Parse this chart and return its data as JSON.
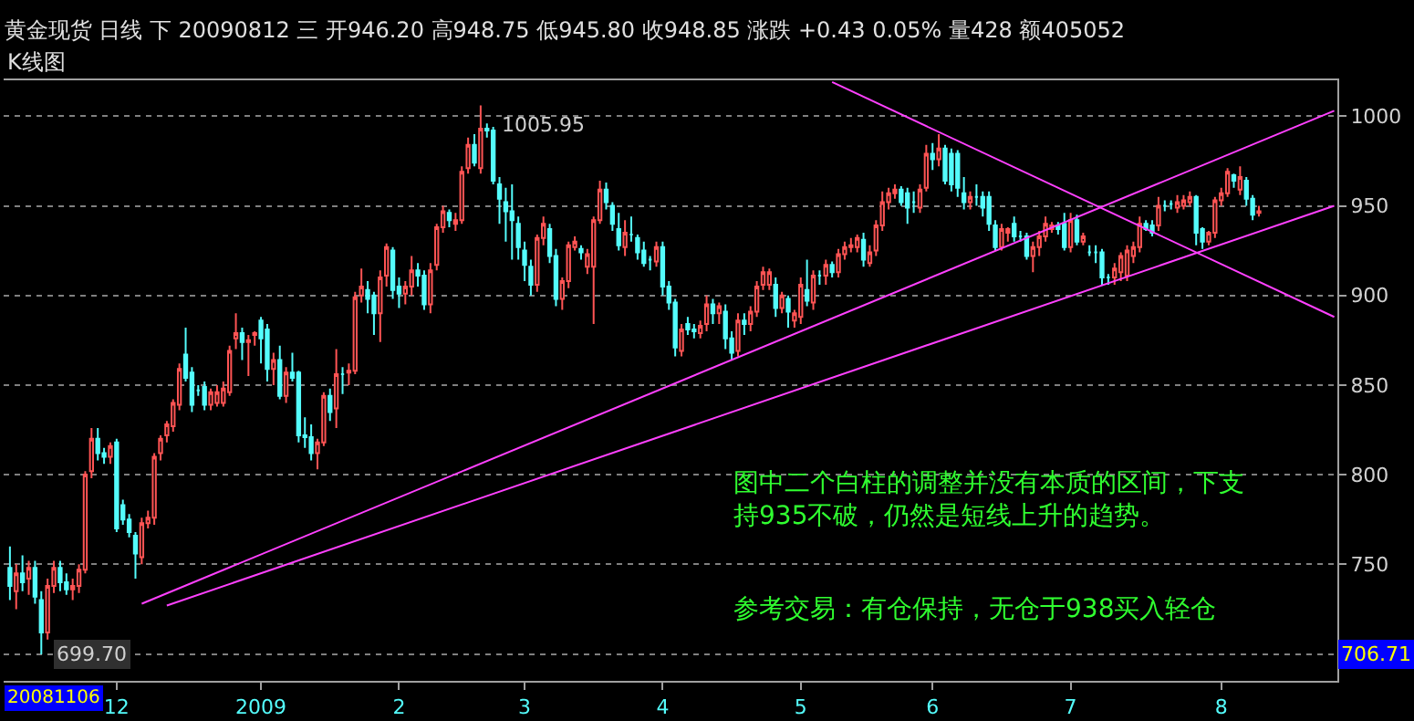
{
  "chart_data": {
    "type": "candlestick",
    "title": "黄金现货 日线 下 20090812 三 开946.20 高948.75 低945.80 收948.85 涨跌 +0.43 0.05% 量428 额405052",
    "subtitle": "K线图",
    "categories": [
      null,
      null,
      null,
      null,
      null,
      null,
      null,
      null,
      null,
      null,
      null,
      null,
      null,
      null,
      null,
      null,
      null,
      "12",
      null,
      null,
      null,
      null,
      null,
      null,
      null,
      null,
      null,
      null,
      null,
      null,
      null,
      null,
      null,
      null,
      null,
      null,
      null,
      null,
      null,
      null,
      "2009",
      null,
      null,
      null,
      null,
      null,
      null,
      null,
      null,
      null,
      null,
      null,
      null,
      null,
      null,
      null,
      null,
      null,
      null,
      null,
      null,
      null,
      "2",
      null,
      null,
      null,
      null,
      null,
      null,
      null,
      null,
      null,
      null,
      null,
      null,
      null,
      null,
      null,
      null,
      null,
      null,
      null,
      "3",
      null,
      null,
      null,
      null,
      null,
      null,
      null,
      null,
      null,
      null,
      null,
      null,
      null,
      null,
      null,
      null,
      null,
      null,
      null,
      null,
      null,
      "4",
      null,
      null,
      null,
      null,
      null,
      null,
      null,
      null,
      null,
      null,
      null,
      null,
      null,
      null,
      null,
      null,
      null,
      null,
      null,
      null,
      null,
      "5",
      null,
      null,
      null,
      null,
      null,
      null,
      null,
      null,
      null,
      null,
      null,
      null,
      null,
      null,
      null,
      null,
      null,
      null,
      null,
      null,
      "6",
      null,
      null,
      null,
      null,
      null,
      null,
      null,
      null,
      null,
      null,
      null,
      null,
      null,
      null,
      null,
      null,
      null,
      null,
      null,
      null,
      null,
      "7",
      null,
      null,
      null,
      null,
      null,
      null,
      null,
      null,
      null,
      null,
      null,
      null,
      null,
      null,
      null,
      null,
      null,
      null,
      null,
      null,
      null,
      null,
      null,
      "8",
      null,
      null,
      null,
      null,
      null,
      null,
      null,
      null,
      null,
      null,
      null,
      null,
      null,
      null,
      null,
      null,
      null,
      null
    ],
    "ohlc": [
      [
        748,
        760,
        730,
        738
      ],
      [
        735,
        750,
        725,
        745
      ],
      [
        745,
        755,
        735,
        740
      ],
      [
        742,
        752,
        733,
        748
      ],
      [
        748,
        752,
        728,
        732
      ],
      [
        730,
        735,
        699.7,
        712
      ],
      [
        712,
        742,
        708,
        738
      ],
      [
        738,
        752,
        734,
        748
      ],
      [
        748,
        752,
        735,
        740
      ],
      [
        740,
        745,
        733,
        736
      ],
      [
        736,
        742,
        730,
        738
      ],
      [
        738,
        750,
        734,
        747
      ],
      [
        747,
        802,
        745,
        800
      ],
      [
        802,
        826,
        798,
        820
      ],
      [
        820,
        826,
        808,
        812
      ],
      [
        812,
        815,
        806,
        810
      ],
      [
        810,
        818,
        806,
        816
      ],
      [
        818,
        820,
        768,
        770
      ],
      [
        783,
        786,
        772,
        775
      ],
      [
        775,
        778,
        765,
        768
      ],
      [
        766,
        768,
        742,
        756
      ],
      [
        754,
        776,
        750,
        773
      ],
      [
        773,
        780,
        770,
        776
      ],
      [
        776,
        812,
        772,
        810
      ],
      [
        812,
        822,
        808,
        820
      ],
      [
        822,
        830,
        818,
        828
      ],
      [
        827,
        842,
        824,
        840
      ],
      [
        839,
        862,
        836,
        859
      ],
      [
        867,
        882,
        852,
        854
      ],
      [
        857,
        860,
        835,
        839
      ],
      [
        847,
        850,
        844,
        847
      ],
      [
        849,
        852,
        836,
        839
      ],
      [
        839,
        848,
        836,
        846
      ],
      [
        840,
        850,
        838,
        846
      ],
      [
        840,
        852,
        838,
        848
      ],
      [
        846,
        872,
        844,
        869
      ],
      [
        876,
        890,
        870,
        879
      ],
      [
        879,
        882,
        864,
        874
      ],
      [
        874,
        878,
        855,
        875
      ],
      [
        878,
        880,
        872,
        879
      ],
      [
        886,
        888,
        862,
        876
      ],
      [
        881,
        884,
        852,
        859
      ],
      [
        859,
        868,
        850,
        864
      ],
      [
        864,
        872,
        842,
        844
      ],
      [
        844,
        860,
        840,
        857
      ],
      [
        857,
        868,
        852,
        854
      ],
      [
        857,
        858,
        818,
        822
      ],
      [
        822,
        832,
        815,
        821
      ],
      [
        821,
        828,
        808,
        812
      ],
      [
        812,
        820,
        803,
        818
      ],
      [
        818,
        846,
        816,
        844
      ],
      [
        844,
        848,
        830,
        835
      ],
      [
        837,
        870,
        826,
        856
      ],
      [
        856,
        860,
        845,
        856
      ],
      [
        857,
        862,
        850,
        858
      ],
      [
        858,
        902,
        856,
        899
      ],
      [
        900,
        915,
        896,
        905
      ],
      [
        903,
        908,
        890,
        898
      ],
      [
        900,
        902,
        878,
        890
      ],
      [
        890,
        914,
        874,
        910
      ],
      [
        911,
        929,
        905,
        927
      ],
      [
        925,
        927,
        898,
        903
      ],
      [
        905,
        910,
        893,
        901
      ],
      [
        901,
        908,
        895,
        905
      ],
      [
        905,
        922,
        900,
        914
      ],
      [
        914,
        918,
        905,
        911
      ],
      [
        911,
        914,
        892,
        895
      ],
      [
        895,
        918,
        890,
        914
      ],
      [
        917,
        940,
        914,
        938
      ],
      [
        938,
        950,
        935,
        947
      ],
      [
        946,
        948,
        938,
        942
      ],
      [
        940,
        946,
        936,
        942
      ],
      [
        942,
        972,
        940,
        969
      ],
      [
        971,
        988,
        968,
        984
      ],
      [
        984,
        990,
        972,
        974
      ],
      [
        971,
        1005.95,
        968,
        993
      ],
      [
        993,
        996,
        988,
        992
      ],
      [
        992,
        994,
        962,
        964
      ],
      [
        962,
        966,
        940,
        954
      ],
      [
        952,
        960,
        930,
        947
      ],
      [
        947,
        962,
        920,
        942
      ],
      [
        940,
        944,
        920,
        927
      ],
      [
        925,
        930,
        908,
        917
      ],
      [
        916,
        920,
        900,
        906
      ],
      [
        906,
        934,
        902,
        932
      ],
      [
        932,
        944,
        928,
        940
      ],
      [
        937,
        940,
        918,
        922
      ],
      [
        922,
        926,
        894,
        898
      ],
      [
        898,
        910,
        892,
        908
      ],
      [
        908,
        930,
        904,
        928
      ],
      [
        927,
        933,
        925,
        930
      ],
      [
        926,
        928,
        920,
        924
      ],
      [
        916,
        926,
        912,
        923
      ],
      [
        916,
        944,
        884,
        942
      ],
      [
        942,
        964,
        940,
        959
      ],
      [
        959,
        963,
        948,
        952
      ],
      [
        950,
        952,
        936,
        940
      ],
      [
        937,
        946,
        925,
        928
      ],
      [
        927,
        942,
        922,
        935
      ],
      [
        934,
        944,
        930,
        934
      ],
      [
        932,
        934,
        920,
        924
      ],
      [
        925,
        930,
        916,
        918
      ],
      [
        920,
        922,
        914,
        920
      ],
      [
        919,
        930,
        916,
        927
      ],
      [
        927,
        930,
        900,
        905
      ],
      [
        905,
        908,
        892,
        896
      ],
      [
        896,
        898,
        866,
        871
      ],
      [
        869,
        884,
        866,
        881
      ],
      [
        884,
        888,
        878,
        881
      ],
      [
        881,
        884,
        876,
        880
      ],
      [
        879,
        886,
        876,
        883
      ],
      [
        884,
        900,
        880,
        895
      ],
      [
        895,
        898,
        884,
        890
      ],
      [
        890,
        896,
        884,
        894
      ],
      [
        891,
        895,
        870,
        876
      ],
      [
        876,
        880,
        864,
        868
      ],
      [
        869,
        890,
        866,
        886
      ],
      [
        886,
        890,
        878,
        884
      ],
      [
        884,
        894,
        880,
        891
      ],
      [
        891,
        908,
        888,
        905
      ],
      [
        906,
        916,
        903,
        913
      ],
      [
        906,
        915,
        903,
        913
      ],
      [
        906,
        910,
        888,
        893
      ],
      [
        893,
        902,
        890,
        900
      ],
      [
        898,
        900,
        882,
        891
      ],
      [
        886,
        892,
        882,
        890
      ],
      [
        888,
        910,
        884,
        906
      ],
      [
        903,
        920,
        894,
        897
      ],
      [
        896,
        914,
        892,
        911
      ],
      [
        911,
        914,
        906,
        911
      ],
      [
        911,
        920,
        906,
        917
      ],
      [
        917,
        919,
        910,
        913
      ],
      [
        913,
        926,
        910,
        923
      ],
      [
        923,
        930,
        920,
        927
      ],
      [
        927,
        932,
        924,
        928
      ],
      [
        927,
        934,
        924,
        932
      ],
      [
        931,
        935,
        916,
        920
      ],
      [
        918,
        928,
        916,
        924
      ],
      [
        925,
        942,
        922,
        939
      ],
      [
        939,
        958,
        936,
        952
      ],
      [
        952,
        960,
        948,
        957
      ],
      [
        957,
        962,
        954,
        959
      ],
      [
        959,
        961,
        950,
        952
      ],
      [
        957,
        960,
        940,
        949
      ],
      [
        952,
        958,
        946,
        952
      ],
      [
        949,
        962,
        946,
        959
      ],
      [
        960,
        984,
        958,
        979
      ],
      [
        979,
        985,
        970,
        976
      ],
      [
        976,
        990,
        972,
        982
      ],
      [
        982,
        984,
        962,
        964
      ],
      [
        979,
        982,
        958,
        962
      ],
      [
        979,
        981,
        955,
        960
      ],
      [
        957,
        966,
        948,
        952
      ],
      [
        952,
        958,
        948,
        955
      ],
      [
        955,
        962,
        950,
        955
      ],
      [
        955,
        958,
        944,
        949
      ],
      [
        955,
        958,
        936,
        940
      ],
      [
        939,
        942,
        925,
        927
      ],
      [
        927,
        940,
        925,
        937
      ],
      [
        935,
        938,
        930,
        937
      ],
      [
        940,
        944,
        930,
        933
      ],
      [
        933,
        936,
        930,
        933
      ],
      [
        933,
        935,
        920,
        922
      ],
      [
        922,
        930,
        913,
        927
      ],
      [
        927,
        936,
        922,
        933
      ],
      [
        933,
        944,
        930,
        940
      ],
      [
        937,
        941,
        935,
        939
      ],
      [
        939,
        941,
        934,
        937
      ],
      [
        940,
        946,
        925,
        927
      ],
      [
        927,
        946,
        924,
        942
      ],
      [
        942,
        945,
        928,
        930
      ],
      [
        930,
        935,
        928,
        933
      ],
      [
        924,
        928,
        922,
        924
      ],
      [
        924,
        928,
        918,
        924
      ],
      [
        924,
        926,
        906,
        910
      ],
      [
        910,
        912,
        906,
        910
      ],
      [
        910,
        918,
        906,
        915
      ],
      [
        913,
        924,
        908,
        922
      ],
      [
        911,
        928,
        908,
        925
      ],
      [
        922,
        930,
        918,
        927
      ],
      [
        927,
        944,
        924,
        940
      ],
      [
        940,
        942,
        936,
        937
      ],
      [
        939,
        942,
        933,
        935
      ],
      [
        939,
        955,
        936,
        950
      ],
      [
        950,
        953,
        947,
        950
      ],
      [
        951,
        953,
        948,
        951
      ],
      [
        949,
        956,
        946,
        952
      ],
      [
        950,
        956,
        948,
        953
      ],
      [
        952,
        958,
        950,
        955
      ],
      [
        955,
        956,
        928,
        935
      ],
      [
        937,
        938,
        926,
        930
      ],
      [
        930,
        936,
        928,
        935
      ],
      [
        935,
        955,
        932,
        953
      ],
      [
        953,
        960,
        950,
        957
      ],
      [
        957,
        971,
        955,
        969
      ],
      [
        967,
        968,
        960,
        964
      ],
      [
        959,
        972,
        956,
        966
      ],
      [
        964,
        966,
        950,
        954
      ],
      [
        954,
        956,
        942,
        945
      ],
      [
        946,
        950,
        944,
        947
      ],
      null,
      null,
      null,
      null,
      null,
      null,
      null,
      null,
      null,
      null,
      null,
      null
    ],
    "colors": [
      "#54fcfc",
      "#ff5454",
      "#54fcfc",
      "#ff5454",
      "#54fcfc",
      "#54fcfc",
      "#ff5454",
      "#ff5454",
      "#54fcfc",
      "#54fcfc",
      "#ff5454",
      "#ff5454",
      "#ff5454",
      "#ff5454",
      "#54fcfc",
      "#54fcfc",
      "#ff5454",
      "#54fcfc",
      "#54fcfc",
      "#54fcfc",
      "#54fcfc",
      "#ff5454",
      "#ff5454",
      "#ff5454",
      "#ff5454",
      "#ff5454",
      "#ff5454",
      "#ff5454",
      "#54fcfc",
      "#54fcfc",
      "#54fcfc",
      "#54fcfc",
      "#ff5454",
      "#ff5454",
      "#ff5454",
      "#ff5454",
      "#ff5454",
      "#54fcfc",
      "#ff5454",
      "#ff5454",
      "#54fcfc",
      "#54fcfc",
      "#ff5454",
      "#54fcfc",
      "#ff5454",
      "#54fcfc",
      "#54fcfc",
      "#54fcfc",
      "#54fcfc",
      "#ff5454",
      "#ff5454",
      "#54fcfc",
      "#ff5454",
      "#54fcfc",
      "#ff5454",
      "#ff5454",
      "#ff5454",
      "#54fcfc",
      "#54fcfc",
      "#ff5454",
      "#ff5454",
      "#54fcfc",
      "#54fcfc",
      "#ff5454",
      "#ff5454",
      "#54fcfc",
      "#54fcfc",
      "#ff5454",
      "#ff5454",
      "#ff5454",
      "#54fcfc",
      "#ff5454",
      "#ff5454",
      "#ff5454",
      "#54fcfc",
      "#ff5454",
      "#54fcfc",
      "#54fcfc",
      "#54fcfc",
      "#54fcfc",
      "#54fcfc",
      "#54fcfc",
      "#54fcfc",
      "#54fcfc",
      "#ff5454",
      "#ff5454",
      "#54fcfc",
      "#54fcfc",
      "#ff5454",
      "#ff5454",
      "#ff5454",
      "#54fcfc",
      "#ff5454",
      "#ff5454",
      "#ff5454",
      "#54fcfc",
      "#54fcfc",
      "#54fcfc",
      "#ff5454",
      "#54fcfc",
      "#54fcfc",
      "#54fcfc",
      "#54fcfc",
      "#ff5454",
      "#54fcfc",
      "#54fcfc",
      "#54fcfc",
      "#ff5454",
      "#54fcfc",
      "#54fcfc",
      "#ff5454",
      "#ff5454",
      "#54fcfc",
      "#ff5454",
      "#54fcfc",
      "#54fcfc",
      "#ff5454",
      "#54fcfc",
      "#ff5454",
      "#ff5454",
      "#ff5454",
      "#ff5454",
      "#54fcfc",
      "#ff5454",
      "#54fcfc",
      "#ff5454",
      "#ff5454",
      "#54fcfc",
      "#ff5454",
      "#54fcfc",
      "#ff5454",
      "#54fcfc",
      "#ff5454",
      "#ff5454",
      "#ff5454",
      "#ff5454",
      "#54fcfc",
      "#ff5454",
      "#ff5454",
      "#ff5454",
      "#ff5454",
      "#ff5454",
      "#54fcfc",
      "#54fcfc",
      "#54fcfc",
      "#ff5454",
      "#ff5454",
      "#54fcfc",
      "#ff5454",
      "#54fcfc",
      "#54fcfc",
      "#54fcfc",
      "#54fcfc",
      "#ff5454",
      "#54fcfc",
      "#54fcfc",
      "#54fcfc",
      "#54fcfc",
      "#ff5454",
      "#ff5454",
      "#54fcfc",
      "#54fcfc",
      "#54fcfc",
      "#ff5454",
      "#ff5454",
      "#ff5454",
      "#ff5454",
      "#54fcfc",
      "#54fcfc",
      "#ff5454",
      "#54fcfc",
      "#ff5454",
      "#54fcfc",
      "#54fcfc",
      "#54fcfc",
      "#54fcfc",
      "#ff5454",
      "#ff5454",
      "#ff5454",
      "#ff5454",
      "#ff5454",
      "#54fcfc",
      "#54fcfc",
      "#ff5454",
      "#54fcfc",
      "#54fcfc",
      "#ff5454",
      "#ff5454",
      "#ff5454",
      "#54fcfc",
      "#54fcfc",
      "#ff5454",
      "#ff5454",
      "#ff5454",
      "#ff5454",
      "#54fcfc",
      "#ff5454",
      "#54fcfc",
      "#54fcfc",
      "#ff5454",
      null,
      null,
      null,
      null,
      null,
      null,
      null,
      null,
      null,
      null,
      null,
      null
    ],
    "series": [
      {
        "type": "line",
        "color": "#ff40ff",
        "values": [
          null,
          null,
          null,
          null,
          null,
          null,
          null,
          null,
          null,
          null,
          null,
          null,
          null,
          null,
          null,
          null,
          null,
          null,
          null,
          null,
          null,
          728,
          null,
          null,
          null,
          null,
          null,
          null,
          null,
          null,
          null,
          null,
          null,
          null,
          null,
          null,
          null,
          null,
          null,
          null,
          null,
          null,
          null,
          null,
          null,
          null,
          null,
          null,
          null,
          null,
          null,
          null,
          null,
          null,
          null,
          null,
          null,
          null,
          null,
          null,
          null,
          null,
          null,
          null,
          null,
          null,
          null,
          null,
          null,
          null,
          null,
          null,
          null,
          null,
          null,
          null,
          null,
          null,
          null,
          null,
          null,
          null,
          null,
          null,
          null,
          null,
          null,
          null,
          null,
          null,
          null,
          null,
          null,
          null,
          null,
          null,
          null,
          null,
          null,
          null,
          null,
          null,
          null,
          null,
          null,
          null,
          null,
          null,
          null,
          null,
          null,
          null,
          null,
          null,
          null,
          null,
          null,
          null,
          null,
          null,
          null,
          null,
          null,
          null,
          null,
          null,
          null,
          null,
          null,
          null,
          null,
          null,
          null,
          null,
          null,
          null,
          null,
          null,
          null,
          null,
          null,
          null,
          null,
          null,
          null,
          null,
          null,
          null,
          null,
          null,
          null,
          null,
          null,
          null,
          null,
          null,
          null,
          null,
          null,
          null,
          null,
          null,
          null,
          null,
          null,
          null,
          null,
          null,
          null,
          null,
          null,
          null,
          null,
          null,
          null,
          null,
          null,
          null,
          null,
          null,
          null,
          null,
          null,
          null,
          null,
          null,
          null,
          null,
          null,
          null,
          null,
          null,
          null,
          null,
          null,
          null,
          null,
          null,
          null,
          null,
          null,
          null,
          null,
          null,
          null,
          null,
          null,
          null,
          null,
          null,
          null,
          1003
        ]
      },
      {
        "type": "line",
        "color": "#ff40ff",
        "values": [
          null,
          null,
          null,
          null,
          null,
          null,
          null,
          null,
          null,
          null,
          null,
          null,
          null,
          null,
          null,
          null,
          null,
          null,
          null,
          null,
          null,
          null,
          null,
          null,
          null,
          727,
          null,
          null,
          null,
          null,
          null,
          null,
          null,
          null,
          null,
          null,
          null,
          null,
          null,
          null,
          null,
          null,
          null,
          null,
          null,
          null,
          null,
          null,
          null,
          null,
          null,
          null,
          null,
          null,
          null,
          null,
          null,
          null,
          null,
          null,
          null,
          null,
          null,
          null,
          null,
          null,
          null,
          null,
          null,
          null,
          null,
          null,
          null,
          null,
          null,
          null,
          null,
          null,
          null,
          null,
          null,
          null,
          null,
          null,
          null,
          null,
          null,
          null,
          null,
          null,
          null,
          null,
          null,
          null,
          null,
          null,
          null,
          null,
          null,
          null,
          null,
          null,
          null,
          null,
          null,
          null,
          null,
          null,
          null,
          null,
          null,
          null,
          null,
          null,
          null,
          null,
          null,
          null,
          null,
          null,
          null,
          null,
          null,
          null,
          null,
          null,
          null,
          null,
          null,
          null,
          null,
          null,
          null,
          null,
          null,
          null,
          null,
          null,
          null,
          null,
          null,
          null,
          null,
          null,
          null,
          null,
          null,
          null,
          null,
          null,
          null,
          null,
          null,
          null,
          null,
          null,
          null,
          null,
          null,
          null,
          null,
          null,
          null,
          null,
          null,
          null,
          null,
          null,
          null,
          null,
          null,
          null,
          null,
          null,
          null,
          null,
          null,
          null,
          null,
          null,
          null,
          null,
          null,
          null,
          null,
          null,
          null,
          null,
          null,
          null,
          null,
          null,
          null,
          null,
          null,
          null,
          null,
          null,
          null,
          null,
          null,
          null,
          null,
          null,
          null,
          null,
          null,
          null,
          null,
          null,
          null,
          950
        ]
      },
      {
        "type": "line",
        "color": "#ff40ff",
        "values": [
          null,
          null,
          null,
          null,
          null,
          null,
          null,
          null,
          null,
          null,
          null,
          null,
          null,
          null,
          null,
          null,
          null,
          null,
          null,
          null,
          null,
          null,
          null,
          null,
          null,
          null,
          null,
          null,
          null,
          null,
          null,
          null,
          null,
          null,
          null,
          null,
          null,
          null,
          null,
          null,
          null,
          null,
          null,
          null,
          null,
          null,
          null,
          null,
          null,
          null,
          null,
          null,
          null,
          null,
          null,
          null,
          null,
          null,
          null,
          null,
          null,
          null,
          null,
          null,
          null,
          null,
          null,
          null,
          null,
          null,
          null,
          null,
          null,
          null,
          null,
          null,
          null,
          null,
          null,
          null,
          null,
          null,
          null,
          null,
          null,
          null,
          null,
          null,
          null,
          null,
          null,
          null,
          null,
          null,
          null,
          null,
          null,
          null,
          null,
          null,
          null,
          null,
          null,
          null,
          null,
          null,
          null,
          null,
          null,
          null,
          null,
          null,
          null,
          null,
          null,
          null,
          null,
          null,
          null,
          null,
          null,
          null,
          null,
          null,
          null,
          null,
          null,
          null,
          null,
          null,
          null,
          1019,
          null,
          null,
          null,
          null,
          null,
          null,
          null,
          null,
          null,
          null,
          null,
          null,
          null,
          null,
          null,
          null,
          null,
          null,
          null,
          null,
          null,
          null,
          null,
          null,
          null,
          null,
          null,
          null,
          null,
          null,
          null,
          null,
          null,
          null,
          null,
          null,
          null,
          null,
          null,
          null,
          null,
          null,
          null,
          null,
          null,
          null,
          null,
          null,
          null,
          null,
          null,
          null,
          null,
          null,
          null,
          null,
          null,
          null,
          null,
          null,
          null,
          null,
          null,
          null,
          null,
          null,
          null,
          null,
          null,
          null,
          null,
          null,
          null,
          null,
          null,
          null,
          null,
          null,
          null,
          888
        ]
      }
    ],
    "ylim": [
      685,
      1020
    ],
    "yticks": [
      {
        "value": 700,
        "label": null
      },
      750,
      800,
      850,
      900,
      950,
      1000
    ],
    "grid": "y",
    "annotations": [
      "1005.95",
      "699.70",
      "20081106",
      "706.71",
      "图中二个白柱的调整并没有本质的区间，下支持935不破，仍然是短线上升的趋势。",
      "参考交易：有仓保持，无仓于938买入轻仓"
    ]
  }
}
